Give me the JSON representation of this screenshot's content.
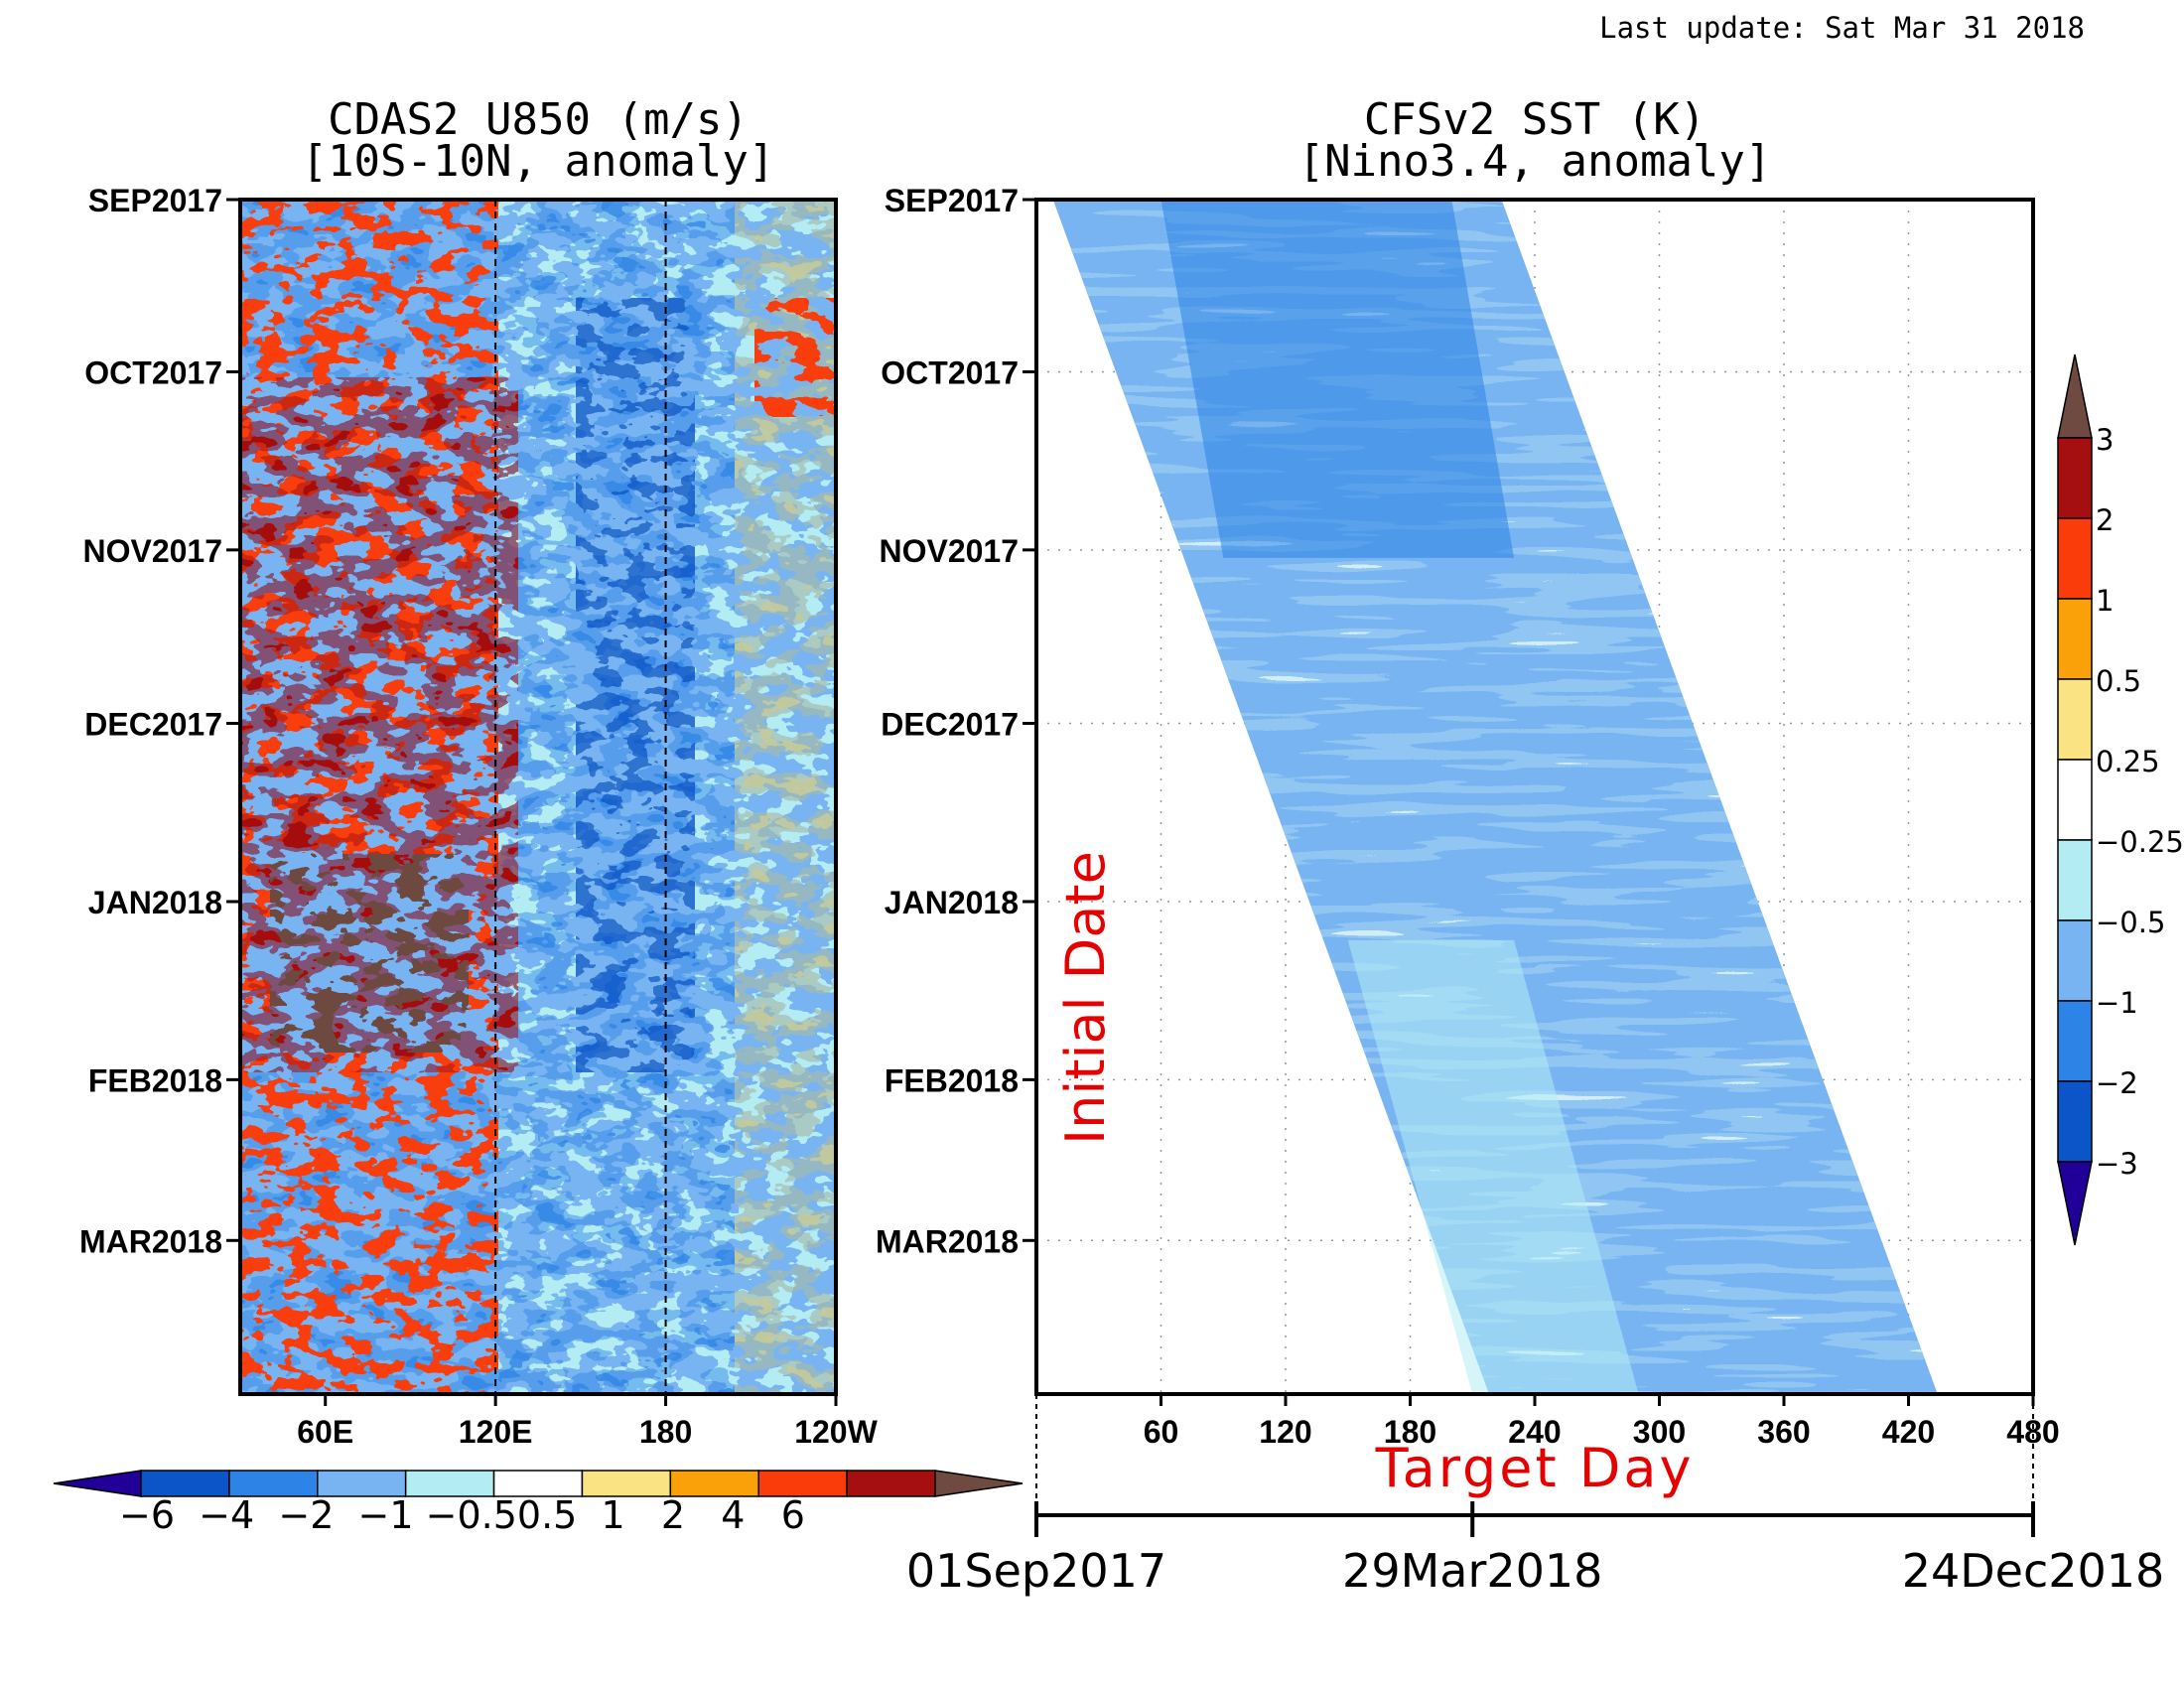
{
  "last_update": "Last update: Sat Mar 31 2018",
  "chart_data": [
    {
      "type": "heatmap",
      "title": "CDAS2 U850 (m/s)",
      "subtitle": "[10S-10N, anomaly]",
      "y_tick_labels": [
        "SEP2017",
        "OCT2017",
        "NOV2017",
        "DEC2017",
        "JAN2018",
        "FEB2018",
        "MAR2018"
      ],
      "y_tick_fractions": [
        0.0,
        0.1442,
        0.2933,
        0.4385,
        0.5877,
        0.7368,
        0.8714
      ],
      "x_tick_labels": [
        "60E",
        "120E",
        "180",
        "120W"
      ],
      "x_tick_lon": [
        60,
        120,
        180,
        240
      ],
      "x_range_lon": [
        30,
        240
      ],
      "reference_lines_lon": [
        120,
        180
      ],
      "colorbar": {
        "levels": [
          "-6",
          "-4",
          "-2",
          "-1",
          "-0.5",
          "0.5",
          "1",
          "2",
          "4",
          "6"
        ],
        "label_text": "−6  −4  −2  −1 −0.50.5  1   2   4   6",
        "colors": [
          "#200098",
          "#0c55c8",
          "#2e83e6",
          "#78b4f2",
          "#b4ecf4",
          "#ffffff",
          "#fae382",
          "#faa10a",
          "#fa3c0a",
          "#a50f0f",
          "#6e4a40"
        ]
      }
    },
    {
      "type": "heatmap",
      "title": "CFSv2 SST (K)",
      "subtitle": "[Nino3.4, anomaly]",
      "y_tick_labels": [
        "SEP2017",
        "OCT2017",
        "NOV2017",
        "DEC2017",
        "JAN2018",
        "FEB2018",
        "MAR2018"
      ],
      "y_tick_fractions": [
        0.0,
        0.1442,
        0.2933,
        0.4385,
        0.5877,
        0.7368,
        0.8714
      ],
      "ylabel": "Initial Date",
      "xlabel": "Target Day",
      "x_ticks": [
        60,
        120,
        180,
        240,
        300,
        360,
        420,
        480
      ],
      "x_range": [
        0,
        480
      ],
      "lead_range_days": [
        0,
        210
      ],
      "time_axis_labels": [
        "01Sep2017",
        "29Mar2018",
        "24Dec2018"
      ],
      "time_axis_day": [
        0,
        210,
        480
      ],
      "colorbar": {
        "levels": [
          "-3",
          "-2",
          "-1",
          "-0.5",
          "-0.25",
          "0.25",
          "0.5",
          "1",
          "2",
          "3"
        ],
        "level_labels": [
          "−3",
          "−2",
          "−1",
          "−0.5",
          "−0.25",
          "0.25",
          "0.5",
          "1",
          "2",
          "3"
        ],
        "colors": [
          "#200098",
          "#0c55c8",
          "#2e83e6",
          "#78b4f2",
          "#b4ecf4",
          "#ffffff",
          "#fae382",
          "#faa10a",
          "#fa3c0a",
          "#a50f0f",
          "#6e4a40"
        ]
      }
    }
  ]
}
